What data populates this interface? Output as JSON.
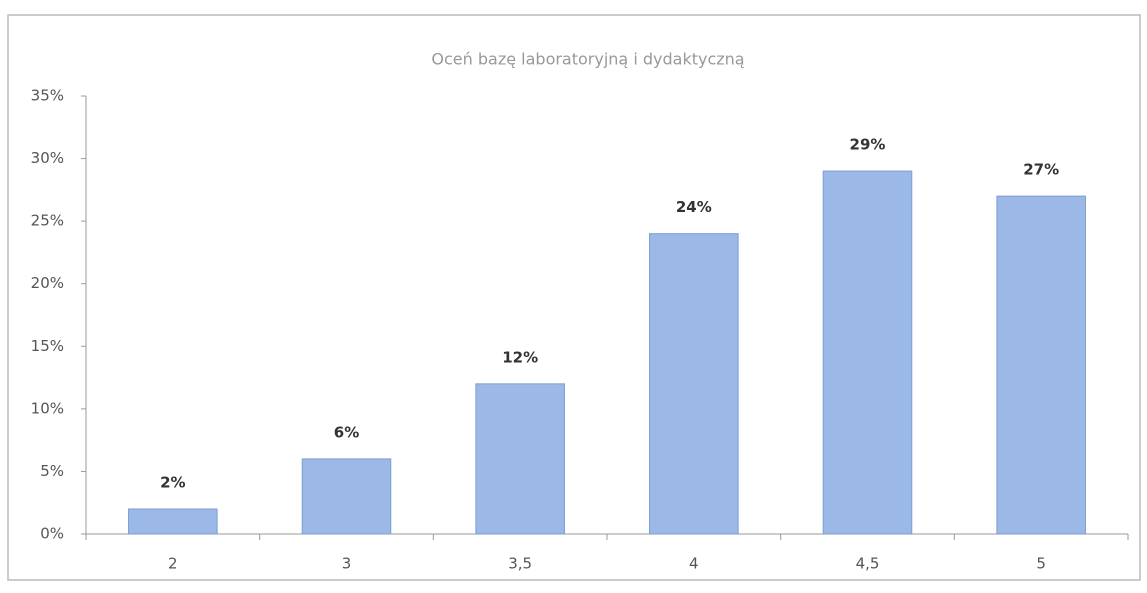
{
  "chart_data": {
    "type": "bar",
    "title": "Oceń bazę laboratoryjną i dydaktyczną",
    "categories": [
      "2",
      "3",
      "3,5",
      "4",
      "4,5",
      "5"
    ],
    "values": [
      2,
      6,
      12,
      24,
      29,
      27
    ],
    "value_labels": [
      "2%",
      "6%",
      "12%",
      "24%",
      "29%",
      "27%"
    ],
    "color": "#9bb8e6",
    "ylim": [
      0,
      35
    ],
    "yticks": [
      {
        "value": 0,
        "label": "0%"
      },
      {
        "value": 5,
        "label": "5%"
      },
      {
        "value": 10,
        "label": "10%"
      },
      {
        "value": 15,
        "label": "15%"
      },
      {
        "value": 20,
        "label": "20%"
      },
      {
        "value": 25,
        "label": "25%"
      },
      {
        "value": 30,
        "label": "30%"
      },
      {
        "value": 35,
        "label": "35%"
      }
    ],
    "grid": false
  }
}
